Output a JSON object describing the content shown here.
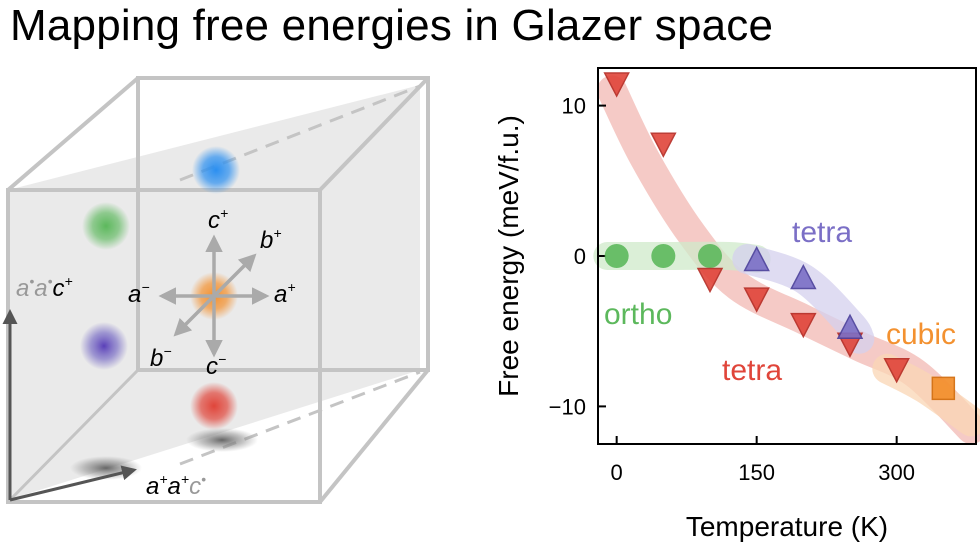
{
  "title": "Mapping free energies in Glazer space",
  "colors": {
    "ortho": "#5cb85c",
    "tetra_red": "#e0453a",
    "tetra_purple": "#7b6fc6",
    "cubic": "#f39130",
    "blue": "#2b8ff0",
    "band_red": "#f2b8b3",
    "band_green": "#cfe9c9",
    "band_purple": "#d4d0ee",
    "band_orange": "#fad6b4"
  },
  "diagram": {
    "axis_labels": {
      "c_plus": "c",
      "c_plus_sup": "+",
      "b_plus": "b",
      "b_plus_sup": "+",
      "a_minus": "a",
      "a_minus_sup": "−",
      "a_plus": "a",
      "a_plus_sup": "+",
      "b_minus": "b",
      "b_minus_sup": "−",
      "c_minus": "c",
      "c_minus_sup": "−"
    },
    "corner_label_top": {
      "p1": "a",
      "p2": "a",
      "p3": "c",
      "p3_sup": "+"
    },
    "corner_label_bottom": {
      "p1": "a",
      "p1_sup": "+",
      "p2": "a",
      "p2_sup": "+",
      "p3": "c"
    }
  },
  "chart_data": {
    "type": "scatter",
    "xlabel": "Temperature (K)",
    "ylabel": "Free energy (meV/f.u.)",
    "xlim": [
      -20,
      385
    ],
    "ylim": [
      -12.5,
      12.5
    ],
    "xticks": [
      0,
      150,
      300
    ],
    "yticks": [
      10,
      0,
      -10
    ],
    "ytick_labels": [
      "10",
      "0",
      "−10"
    ],
    "series": [
      {
        "name": "ortho",
        "marker": "circle",
        "color": "#5cb85c",
        "x": [
          0,
          50,
          100
        ],
        "y": [
          0,
          0,
          0
        ]
      },
      {
        "name": "tetra",
        "marker": "triangle-down",
        "color": "#e0453a",
        "x": [
          0,
          50,
          100,
          150,
          200,
          250,
          300
        ],
        "y": [
          11.5,
          7.5,
          -1.5,
          -2.8,
          -4.5,
          -5.8,
          -7.5
        ]
      },
      {
        "name": "tetra",
        "marker": "triangle-up",
        "color": "#7b6fc6",
        "x": [
          150,
          200,
          250
        ],
        "y": [
          -0.3,
          -1.5,
          -4.8
        ]
      },
      {
        "name": "cubic",
        "marker": "square",
        "color": "#f39130",
        "x": [
          350
        ],
        "y": [
          -8.8
        ]
      }
    ],
    "bands": [
      {
        "series": "tetra",
        "color": "#f2b8b3",
        "x": [
          -5,
          30,
          80,
          130,
          200,
          260,
          320,
          380
        ],
        "y": [
          11,
          6.5,
          1.5,
          -2,
          -4.2,
          -6,
          -7.8,
          -11.5
        ]
      },
      {
        "series": "ortho",
        "color": "#cfe9c9",
        "x": [
          -10,
          50,
          120,
          150
        ],
        "y": [
          0,
          0,
          0,
          -0.2
        ]
      },
      {
        "series": "tetra",
        "color": "#d4d0ee",
        "x": [
          140,
          200,
          250,
          260
        ],
        "y": [
          -0.2,
          -1.5,
          -4.5,
          -5.5
        ]
      },
      {
        "series": "cubic",
        "color": "#fad6b4",
        "x": [
          290,
          330,
          380
        ],
        "y": [
          -7.5,
          -8.8,
          -11
        ]
      }
    ],
    "annotations": [
      {
        "text": "ortho",
        "color": "#5cb85c"
      },
      {
        "text": "tetra",
        "color": "#7b6fc6"
      },
      {
        "text": "tetra",
        "color": "#e0453a"
      },
      {
        "text": "cubic",
        "color": "#f39130"
      }
    ]
  }
}
